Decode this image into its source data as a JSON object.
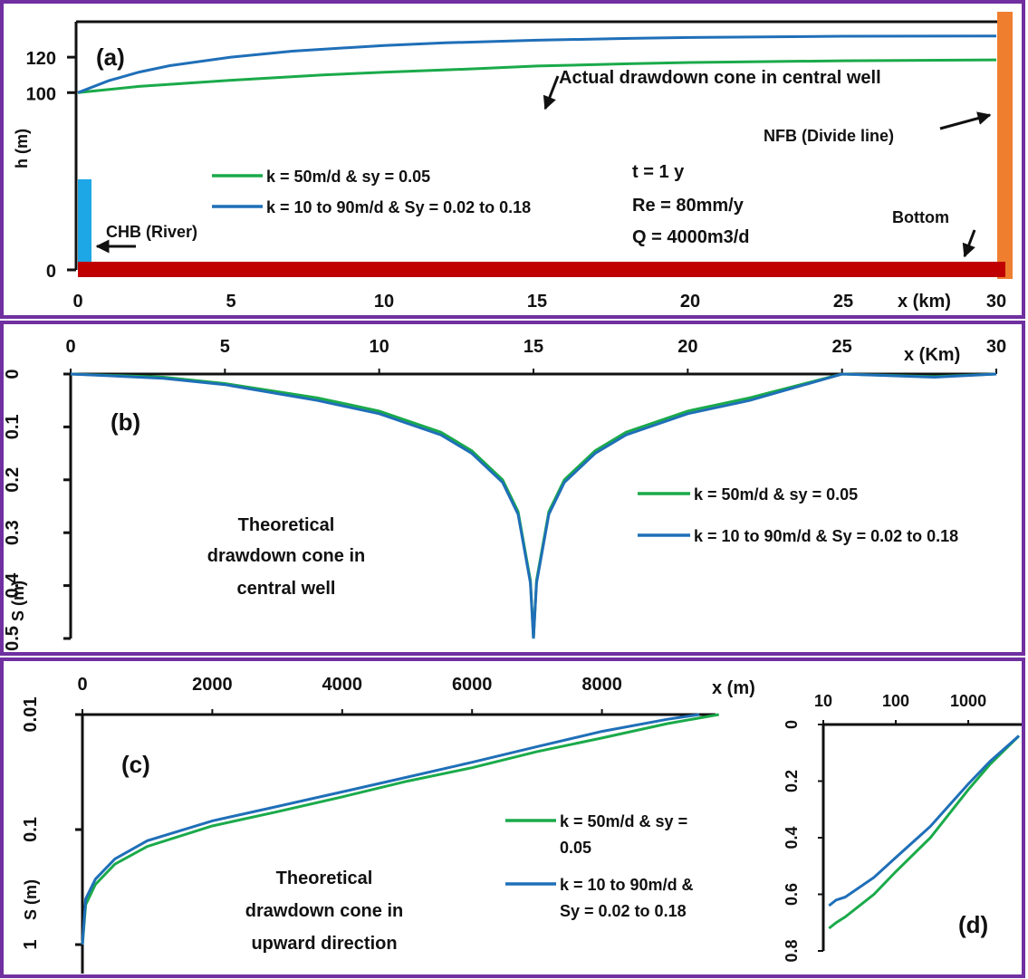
{
  "colors": {
    "frame": "#7030a0",
    "green": "#1aaa4a",
    "blue": "#1f6fb8",
    "river": "#1ea7e6",
    "bottom": "#c00000",
    "nfb": "#ef7f2f",
    "text": "#111111"
  },
  "legend": {
    "green": "k = 50m/d & sy = 0.05",
    "blue": "k = 10 to 90m/d & Sy = 0.02 to 0.18",
    "green_wrap": [
      "k = 50m/d & sy =",
      "0.05"
    ],
    "blue_wrap": [
      "k = 10 to 90m/d &",
      "Sy = 0.02 to 0.18"
    ]
  },
  "chart_data": [
    {
      "panel": "(a)",
      "type": "line",
      "xlabel": "x (km)",
      "ylabel": "h (m)",
      "xlim": [
        0,
        30
      ],
      "ylim": [
        0,
        140
      ],
      "xticks": [
        "0",
        "5",
        "10",
        "15",
        "20",
        "25",
        "30"
      ],
      "yticks": [
        "0",
        "100",
        "120"
      ],
      "series": [
        {
          "name": "k = 50m/d & sy = 0.05",
          "color": "green",
          "x": [
            0,
            2,
            5,
            8,
            10,
            13,
            15,
            18,
            20,
            25,
            30
          ],
          "y": [
            100,
            103.5,
            107,
            110,
            111.5,
            113.5,
            115,
            116.3,
            117,
            118,
            118.5
          ]
        },
        {
          "name": "k = 10 to 90m/d & Sy = 0.02 to 0.18",
          "color": "blue",
          "x": [
            0,
            1,
            2,
            3,
            5,
            7,
            10,
            12,
            15,
            18,
            20,
            25,
            30
          ],
          "y": [
            100,
            106.7,
            111.6,
            115.2,
            120,
            123.4,
            126.6,
            128.1,
            129.6,
            130.6,
            131.1,
            131.8,
            132
          ]
        }
      ],
      "annotations": {
        "well": "Actual drawdown cone in central well",
        "nfb": "NFB (Divide line)",
        "chb": "CHB (River)",
        "bottom": "Bottom",
        "t": "t = 1 y",
        "re": "Re = 80mm/y",
        "q": "Q = 4000m3/d"
      }
    },
    {
      "panel": "(b)",
      "type": "line",
      "xlabel": "x (Km)",
      "ylabel": "S (m)",
      "xlim": [
        0,
        30
      ],
      "ylim": [
        0,
        0.5
      ],
      "xticks": [
        "0",
        "5",
        "10",
        "15",
        "20",
        "25",
        "30"
      ],
      "yticks": [
        "0",
        "0.1",
        "0.2",
        "0.3",
        "0.4",
        "0.5"
      ],
      "series": [
        {
          "name": "k = 50m/d & sy = 0.05",
          "color": "green",
          "x": [
            0,
            3,
            5,
            8,
            10,
            12,
            13,
            14,
            14.5,
            14.9,
            15,
            15.1,
            15.5,
            16,
            17,
            18,
            20,
            22,
            25,
            28,
            30
          ],
          "y": [
            0.0,
            0.006,
            0.018,
            0.045,
            0.07,
            0.11,
            0.145,
            0.2,
            0.26,
            0.39,
            0.5,
            0.39,
            0.26,
            0.2,
            0.145,
            0.11,
            0.07,
            0.045,
            0.0,
            0.005,
            0.0
          ]
        },
        {
          "name": "k = 10 to 90m/d & Sy = 0.02 to 0.18",
          "color": "blue",
          "x": [
            0,
            3,
            5,
            8,
            10,
            12,
            13,
            14,
            14.5,
            14.9,
            15,
            15.1,
            15.5,
            16,
            17,
            18,
            20,
            22,
            25,
            28,
            30
          ],
          "y": [
            0.0,
            0.008,
            0.02,
            0.05,
            0.075,
            0.115,
            0.15,
            0.205,
            0.265,
            0.395,
            0.5,
            0.395,
            0.265,
            0.205,
            0.15,
            0.115,
            0.075,
            0.05,
            0.0,
            0.006,
            0.0
          ]
        }
      ],
      "annotations": {
        "title": [
          "Theoretical",
          "drawdown cone in",
          "central well"
        ]
      }
    },
    {
      "panel": "(c)",
      "type": "line",
      "xlabel": "x (m)",
      "ylabel": "S (m)",
      "xlim": [
        0,
        10000
      ],
      "ylim": [
        0.01,
        1
      ],
      "yscale": "log",
      "xticks": [
        "0",
        "2000",
        "4000",
        "6000",
        "8000"
      ],
      "yticks": [
        "0.01",
        "0.1",
        "1"
      ],
      "series": [
        {
          "name": "k = 50m/d & sy = 0.05",
          "color": "green",
          "x": [
            0,
            50,
            200,
            500,
            1000,
            2000,
            3000,
            4000,
            5000,
            6000,
            7000,
            8000,
            9000,
            9800
          ],
          "y": [
            1.0,
            0.45,
            0.3,
            0.2,
            0.14,
            0.093,
            0.07,
            0.052,
            0.038,
            0.029,
            0.021,
            0.016,
            0.012,
            0.01
          ]
        },
        {
          "name": "k = 10 to 90m/d & Sy = 0.02 to 0.18",
          "color": "blue",
          "x": [
            0,
            50,
            200,
            500,
            1000,
            2000,
            3000,
            4000,
            5000,
            6000,
            7000,
            8000,
            9000,
            9500
          ],
          "y": [
            1.0,
            0.4,
            0.27,
            0.18,
            0.125,
            0.084,
            0.063,
            0.047,
            0.035,
            0.026,
            0.019,
            0.014,
            0.011,
            0.01
          ]
        }
      ],
      "annotations": {
        "title": [
          "Theoretical",
          "drawdown cone in",
          "upward direction"
        ]
      }
    },
    {
      "panel": "(d)",
      "type": "line",
      "xscale": "log",
      "xlim": [
        10,
        5000
      ],
      "ylim": [
        0,
        0.8
      ],
      "xticks": [
        "10",
        "100",
        "1000"
      ],
      "yticks": [
        "0",
        "0.2",
        "0.4",
        "0.6",
        "0.8"
      ],
      "series": [
        {
          "name": "k = 50m/d & sy = 0.05",
          "color": "green",
          "x": [
            12,
            15,
            20,
            50,
            100,
            300,
            1000,
            2000,
            5000
          ],
          "y": [
            0.72,
            0.7,
            0.68,
            0.6,
            0.52,
            0.4,
            0.23,
            0.14,
            0.04
          ]
        },
        {
          "name": "k = 10 to 90m/d & Sy = 0.02 to 0.18",
          "color": "blue",
          "x": [
            12,
            15,
            20,
            50,
            100,
            300,
            1000,
            2000,
            5000
          ],
          "y": [
            0.64,
            0.62,
            0.61,
            0.54,
            0.47,
            0.36,
            0.21,
            0.13,
            0.04
          ]
        }
      ]
    }
  ]
}
